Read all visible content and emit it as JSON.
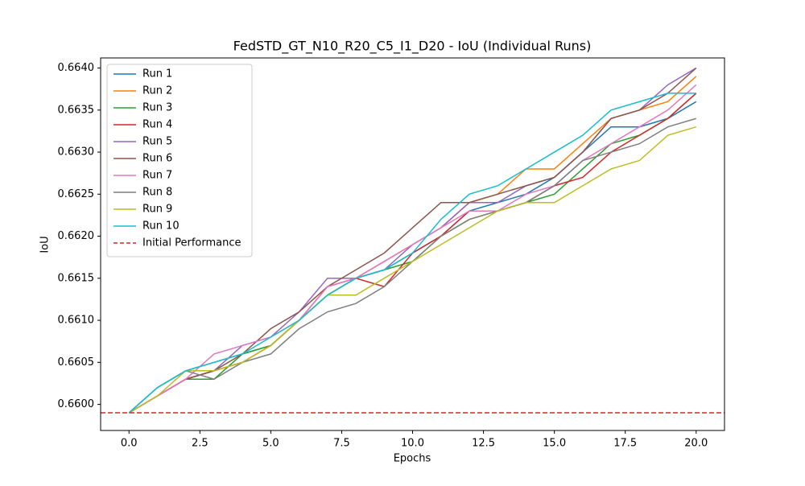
{
  "chart_data": {
    "type": "line",
    "title": "FedSTD_GT_N10_R20_C5_I1_D20 - IoU (Individual Runs)",
    "x_label": "Epochs",
    "y_label": "IoU",
    "x": [
      0,
      1,
      2,
      3,
      4,
      5,
      6,
      7,
      8,
      9,
      10,
      11,
      12,
      13,
      14,
      15,
      16,
      17,
      18,
      19,
      20
    ],
    "series": [
      {
        "name": "Run 1",
        "color": "#1f77b4",
        "values": [
          0.6599,
          0.6602,
          0.6604,
          0.6605,
          0.6606,
          0.6607,
          0.661,
          0.6613,
          0.6615,
          0.6616,
          0.6618,
          0.662,
          0.6623,
          0.6624,
          0.6625,
          0.6627,
          0.663,
          0.6633,
          0.6633,
          0.6634,
          0.6636
        ]
      },
      {
        "name": "Run 2",
        "color": "#ff7f0e",
        "values": [
          0.6599,
          0.6601,
          0.6603,
          0.6604,
          0.6605,
          0.6607,
          0.661,
          0.6613,
          0.6615,
          0.6617,
          0.6619,
          0.6621,
          0.6624,
          0.6625,
          0.6628,
          0.6628,
          0.6631,
          0.6634,
          0.6635,
          0.6636,
          0.6639
        ]
      },
      {
        "name": "Run 3",
        "color": "#2ca02c",
        "values": [
          0.6599,
          0.6601,
          0.6603,
          0.6603,
          0.6606,
          0.6607,
          0.661,
          0.6613,
          0.6615,
          0.6616,
          0.6617,
          0.662,
          0.6622,
          0.6623,
          0.6624,
          0.6625,
          0.6628,
          0.6631,
          0.6632,
          0.6634,
          0.6637
        ]
      },
      {
        "name": "Run 4",
        "color": "#d62728",
        "values": [
          0.6599,
          0.6601,
          0.6603,
          0.6604,
          0.6605,
          0.6607,
          0.661,
          0.6614,
          0.6615,
          0.6614,
          0.6618,
          0.662,
          0.6623,
          0.6623,
          0.6624,
          0.6626,
          0.6627,
          0.663,
          0.6632,
          0.6634,
          0.6637
        ]
      },
      {
        "name": "Run 5",
        "color": "#9467bd",
        "values": [
          0.6599,
          0.6601,
          0.6603,
          0.6604,
          0.6607,
          0.6608,
          0.6611,
          0.6615,
          0.6615,
          0.6616,
          0.6619,
          0.6621,
          0.6624,
          0.6624,
          0.6626,
          0.6627,
          0.663,
          0.6634,
          0.6635,
          0.6638,
          0.664
        ]
      },
      {
        "name": "Run 6",
        "color": "#8c564b",
        "values": [
          0.6599,
          0.6601,
          0.6603,
          0.6604,
          0.6606,
          0.6609,
          0.6611,
          0.6614,
          0.6616,
          0.6618,
          0.6621,
          0.6624,
          0.6624,
          0.6625,
          0.6626,
          0.6627,
          0.663,
          0.6634,
          0.6635,
          0.6637,
          0.664
        ]
      },
      {
        "name": "Run 7",
        "color": "#e377c2",
        "values": [
          0.6599,
          0.6601,
          0.6603,
          0.6606,
          0.6607,
          0.6608,
          0.661,
          0.6614,
          0.6615,
          0.6617,
          0.6619,
          0.6621,
          0.6623,
          0.6623,
          0.6625,
          0.6626,
          0.6629,
          0.6631,
          0.6633,
          0.6635,
          0.6638
        ]
      },
      {
        "name": "Run 8",
        "color": "#7f7f7f",
        "values": [
          0.6599,
          0.6602,
          0.6604,
          0.6603,
          0.6605,
          0.6606,
          0.6609,
          0.6611,
          0.6612,
          0.6614,
          0.6617,
          0.662,
          0.6622,
          0.6623,
          0.6624,
          0.6626,
          0.6629,
          0.663,
          0.6631,
          0.6633,
          0.6634
        ]
      },
      {
        "name": "Run 9",
        "color": "#bcbd22",
        "values": [
          0.6599,
          0.6601,
          0.6604,
          0.6604,
          0.6605,
          0.6607,
          0.661,
          0.6613,
          0.6613,
          0.6615,
          0.6617,
          0.6619,
          0.6621,
          0.6623,
          0.6624,
          0.6624,
          0.6626,
          0.6628,
          0.6629,
          0.6632,
          0.6633
        ]
      },
      {
        "name": "Run 10",
        "color": "#17becf",
        "values": [
          0.6599,
          0.6602,
          0.6604,
          0.6605,
          0.6606,
          0.6608,
          0.661,
          0.6613,
          0.6615,
          0.6616,
          0.6618,
          0.6622,
          0.6625,
          0.6626,
          0.6628,
          0.663,
          0.6632,
          0.6635,
          0.6636,
          0.6637,
          0.6637
        ]
      }
    ],
    "hlines": [
      {
        "name": "Initial Performance",
        "value": 0.6599,
        "color": "#d62728",
        "style": "dashed"
      }
    ],
    "xlim": [
      -1,
      21
    ],
    "xticks": [
      {
        "value": 0,
        "label": "0.0"
      },
      {
        "value": 2.5,
        "label": "2.5"
      },
      {
        "value": 5,
        "label": "5.0"
      },
      {
        "value": 7.5,
        "label": "7.5"
      },
      {
        "value": 10,
        "label": "10.0"
      },
      {
        "value": 12.5,
        "label": "12.5"
      },
      {
        "value": 15,
        "label": "15.0"
      },
      {
        "value": 17.5,
        "label": "17.5"
      },
      {
        "value": 20,
        "label": "20.0"
      }
    ],
    "ylim": [
      0.65969,
      0.66412
    ],
    "yticks": [
      {
        "value": 0.66,
        "label": "0.6600"
      },
      {
        "value": 0.6605,
        "label": "0.6605"
      },
      {
        "value": 0.661,
        "label": "0.6610"
      },
      {
        "value": 0.6615,
        "label": "0.6615"
      },
      {
        "value": 0.662,
        "label": "0.6620"
      },
      {
        "value": 0.6625,
        "label": "0.6625"
      },
      {
        "value": 0.663,
        "label": "0.6630"
      },
      {
        "value": 0.6635,
        "label": "0.6635"
      },
      {
        "value": 0.664,
        "label": "0.6640"
      }
    ],
    "grid": false,
    "legend": "upper left"
  }
}
